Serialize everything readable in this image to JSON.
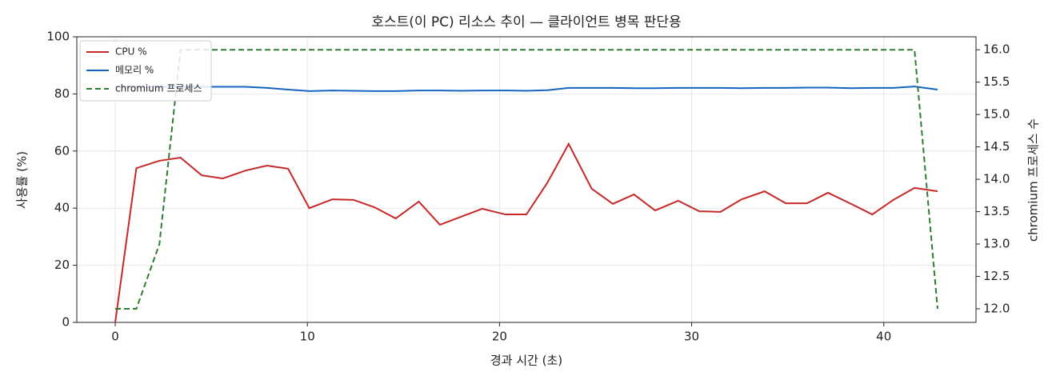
{
  "chart_data": {
    "type": "line",
    "title": "호스트(이 PC) 리소스 추이 — 클라이언트 병목 판단용",
    "xlabel": "경과 시간 (초)",
    "ylabel": "사용률 (%)",
    "y2label": "chromium 프로세스 수",
    "x": [
      0,
      1.1,
      2.3,
      3.4,
      4.5,
      5.6,
      6.8,
      7.9,
      9.0,
      10.1,
      11.3,
      12.4,
      13.5,
      14.6,
      15.8,
      16.9,
      18.0,
      19.1,
      20.3,
      21.4,
      22.5,
      23.6,
      24.8,
      25.9,
      27.0,
      28.1,
      29.3,
      30.4,
      31.5,
      32.6,
      33.8,
      34.9,
      36.0,
      37.1,
      38.3,
      39.4,
      40.5,
      41.6,
      42.8
    ],
    "series": [
      {
        "name": "CPU %",
        "color": "#c62828",
        "dash": false,
        "values": [
          0,
          54,
          56.6,
          57.7,
          51.5,
          50.4,
          53.2,
          54.9,
          53.8,
          40,
          43.1,
          42.9,
          40.3,
          36.4,
          42.3,
          34.2,
          37,
          39.8,
          37.8,
          37.8,
          49,
          62.5,
          46.8,
          41.5,
          44.8,
          39.2,
          42.6,
          38.9,
          38.7,
          43.1,
          45.9,
          41.7,
          41.7,
          45.4,
          41.5,
          37.8,
          42.9,
          47.1,
          45.9
        ]
      },
      {
        "name": "메모리 %",
        "color": "#1565c0",
        "dash": false,
        "values": [
          82.5,
          82.5,
          82.5,
          82.6,
          82.5,
          82.5,
          82.5,
          82.1,
          81.5,
          81.0,
          81.2,
          81.1,
          81.0,
          81.0,
          81.2,
          81.2,
          81.1,
          81.2,
          81.2,
          81.1,
          81.3,
          82.1,
          82.1,
          82.1,
          82.0,
          82.0,
          82.1,
          82.1,
          82.1,
          82.0,
          82.1,
          82.1,
          82.2,
          82.2,
          82.0,
          82.1,
          82.1,
          82.6,
          81.5
        ]
      },
      {
        "name": "chromium 프로세스",
        "color": "#2e7d32",
        "dash": true,
        "axis": "y2",
        "values": [
          12,
          12,
          13,
          16,
          16,
          16,
          16,
          16,
          16,
          16,
          16,
          16,
          16,
          16,
          16,
          16,
          16,
          16,
          16,
          16,
          16,
          16,
          16,
          16,
          16,
          16,
          16,
          16,
          16,
          16,
          16,
          16,
          16,
          16,
          16,
          16,
          16,
          16,
          12
        ]
      }
    ],
    "xlim": [
      -2.0,
      44.8
    ],
    "xticks": [
      0,
      10,
      20,
      30,
      40
    ],
    "ylim": [
      0,
      100
    ],
    "yticks": [
      0,
      20,
      40,
      60,
      80,
      100
    ],
    "y2lim": [
      11.79,
      16.2
    ],
    "y2ticks": [
      {
        "value": 12,
        "label": "12.0"
      },
      12.5,
      {
        "value": 13,
        "label": "13.0"
      },
      13.5,
      {
        "value": 14,
        "label": "14.0"
      },
      14.5,
      {
        "value": 15,
        "label": "15.0"
      },
      15.5,
      {
        "value": 16,
        "label": "16.0"
      }
    ],
    "grid": true,
    "legend": "upper left"
  }
}
